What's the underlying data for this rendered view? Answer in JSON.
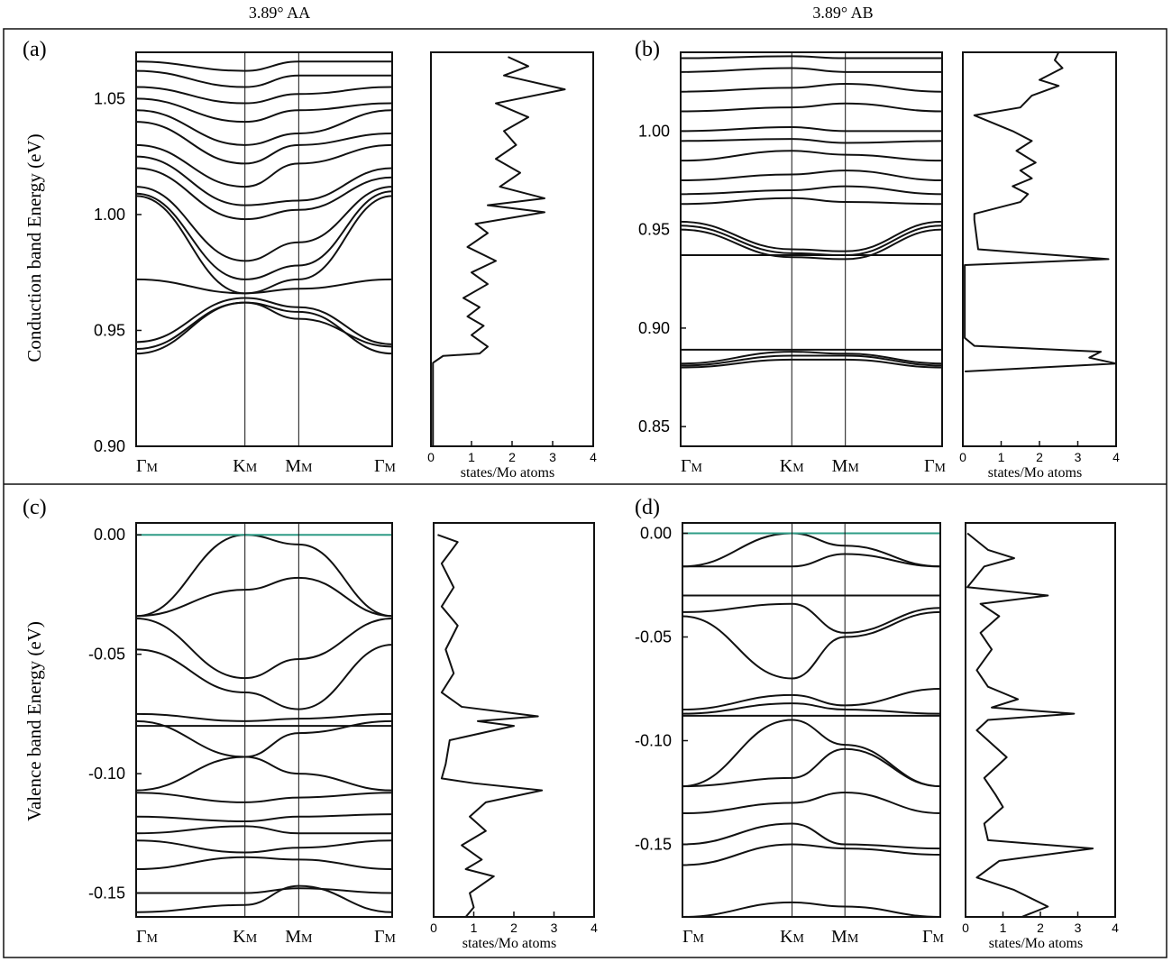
{
  "figure": {
    "column_titles": [
      "3.89° AA",
      "3.89° AB"
    ],
    "row_ylabels": [
      "Conduction band Energy (eV)",
      "Valence band Energy (eV)"
    ],
    "kpath_labels": [
      "ΓM",
      "KM",
      "MM",
      "ΓM"
    ],
    "dos_xlabel": "states/Mo atoms",
    "colors": {
      "band": "#111111",
      "fermi": "#2e9c86",
      "frame": "#111111"
    }
  },
  "chart_data": [
    {
      "type": "line",
      "panel": "(a)",
      "title": "3.89° AA",
      "subtype": "band-structure",
      "ylabel": "Conduction band Energy (eV)",
      "ylim": [
        0.9,
        1.07
      ],
      "yticks": [
        0.9,
        0.95,
        1.0,
        1.05
      ],
      "x": [
        "ΓM",
        "KM",
        "MM",
        "ΓM"
      ],
      "series": [
        {
          "values": [
            0.94,
            0.962,
            0.958,
            0.94
          ]
        },
        {
          "values": [
            0.942,
            0.962,
            0.955,
            0.943
          ]
        },
        {
          "values": [
            0.945,
            0.964,
            0.96,
            0.944
          ]
        },
        {
          "values": [
            0.972,
            0.966,
            0.968,
            0.972
          ]
        },
        {
          "values": [
            1.008,
            0.966,
            0.972,
            1.008
          ]
        },
        {
          "values": [
            1.009,
            0.972,
            0.978,
            1.01
          ]
        },
        {
          "values": [
            1.012,
            0.98,
            0.988,
            1.012
          ]
        },
        {
          "values": [
            1.02,
            0.998,
            1.002,
            1.016
          ]
        },
        {
          "values": [
            1.025,
            1.004,
            1.006,
            1.02
          ]
        },
        {
          "values": [
            1.03,
            1.012,
            1.022,
            1.03
          ]
        },
        {
          "values": [
            1.04,
            1.022,
            1.03,
            1.035
          ]
        },
        {
          "values": [
            1.045,
            1.03,
            1.035,
            1.045
          ]
        },
        {
          "values": [
            1.05,
            1.04,
            1.045,
            1.048
          ]
        },
        {
          "values": [
            1.055,
            1.048,
            1.052,
            1.055
          ]
        },
        {
          "values": [
            1.062,
            1.055,
            1.06,
            1.06
          ]
        },
        {
          "values": [
            1.066,
            1.062,
            1.066,
            1.066
          ]
        }
      ]
    },
    {
      "type": "line",
      "panel": "(a)",
      "subtype": "dos",
      "xlabel": "states/Mo atoms",
      "xlim": [
        0,
        4
      ],
      "xticks": [
        0,
        1,
        2,
        3,
        4
      ],
      "ylim": [
        0.9,
        1.07
      ],
      "points": [
        [
          0.05,
          0.9
        ],
        [
          0.05,
          0.936
        ],
        [
          0.3,
          0.939
        ],
        [
          1.2,
          0.94
        ],
        [
          1.4,
          0.943
        ],
        [
          1.0,
          0.948
        ],
        [
          1.3,
          0.952
        ],
        [
          0.9,
          0.956
        ],
        [
          1.2,
          0.96
        ],
        [
          0.8,
          0.964
        ],
        [
          1.4,
          0.97
        ],
        [
          1.0,
          0.975
        ],
        [
          1.6,
          0.98
        ],
        [
          0.9,
          0.986
        ],
        [
          1.4,
          0.992
        ],
        [
          1.1,
          0.996
        ],
        [
          2.8,
          1.001
        ],
        [
          1.4,
          1.004
        ],
        [
          2.8,
          1.007
        ],
        [
          1.7,
          1.012
        ],
        [
          2.2,
          1.018
        ],
        [
          1.6,
          1.024
        ],
        [
          2.1,
          1.03
        ],
        [
          1.8,
          1.036
        ],
        [
          2.4,
          1.042
        ],
        [
          1.6,
          1.048
        ],
        [
          3.3,
          1.054
        ],
        [
          1.8,
          1.06
        ],
        [
          2.4,
          1.064
        ],
        [
          1.9,
          1.068
        ]
      ]
    },
    {
      "type": "line",
      "panel": "(b)",
      "title": "3.89° AB",
      "subtype": "band-structure",
      "ylim": [
        0.84,
        1.04
      ],
      "yticks": [
        0.85,
        0.9,
        0.95,
        1.0
      ],
      "x": [
        "ΓM",
        "KM",
        "MM",
        "ΓM"
      ],
      "series": [
        {
          "values": [
            0.88,
            0.884,
            0.884,
            0.88
          ]
        },
        {
          "values": [
            0.881,
            0.886,
            0.886,
            0.881
          ]
        },
        {
          "values": [
            0.882,
            0.888,
            0.887,
            0.882
          ]
        },
        {
          "values": [
            0.889,
            0.889,
            0.889,
            0.889
          ]
        },
        {
          "values": [
            0.937,
            0.937,
            0.937,
            0.937
          ]
        },
        {
          "values": [
            0.95,
            0.936,
            0.935,
            0.95
          ]
        },
        {
          "values": [
            0.952,
            0.938,
            0.937,
            0.952
          ]
        },
        {
          "values": [
            0.954,
            0.94,
            0.939,
            0.954
          ]
        },
        {
          "values": [
            0.963,
            0.966,
            0.964,
            0.963
          ]
        },
        {
          "values": [
            0.968,
            0.97,
            0.972,
            0.968
          ]
        },
        {
          "values": [
            0.975,
            0.978,
            0.98,
            0.975
          ]
        },
        {
          "values": [
            0.985,
            0.99,
            0.988,
            0.985
          ]
        },
        {
          "values": [
            0.995,
            0.996,
            0.994,
            0.995
          ]
        },
        {
          "values": [
            1.0,
            1.002,
            1.0,
            1.0
          ]
        },
        {
          "values": [
            1.01,
            1.012,
            1.014,
            1.01
          ]
        },
        {
          "values": [
            1.02,
            1.022,
            1.024,
            1.02
          ]
        },
        {
          "values": [
            1.03,
            1.032,
            1.03,
            1.03
          ]
        },
        {
          "values": [
            1.037,
            1.038,
            1.037,
            1.037
          ]
        }
      ]
    },
    {
      "type": "line",
      "panel": "(b)",
      "subtype": "dos",
      "xlabel": "states/Mo atoms",
      "xlim": [
        0,
        4
      ],
      "xticks": [
        0,
        1,
        2,
        3,
        4
      ],
      "ylim": [
        0.84,
        1.04
      ],
      "points": [
        [
          0.05,
          0.878
        ],
        [
          4.0,
          0.882
        ],
        [
          3.3,
          0.885
        ],
        [
          3.6,
          0.888
        ],
        [
          0.3,
          0.891
        ],
        [
          0.05,
          0.895
        ],
        [
          0.05,
          0.932
        ],
        [
          3.8,
          0.935
        ],
        [
          0.4,
          0.94
        ],
        [
          0.3,
          0.955
        ],
        [
          0.3,
          0.958
        ],
        [
          1.5,
          0.964
        ],
        [
          1.7,
          0.968
        ],
        [
          1.3,
          0.972
        ],
        [
          1.8,
          0.976
        ],
        [
          1.5,
          0.98
        ],
        [
          1.9,
          0.984
        ],
        [
          1.4,
          0.99
        ],
        [
          1.8,
          0.995
        ],
        [
          1.3,
          1.0
        ],
        [
          0.3,
          1.008
        ],
        [
          1.5,
          1.012
        ],
        [
          1.8,
          1.018
        ],
        [
          2.5,
          1.023
        ],
        [
          2.0,
          1.026
        ],
        [
          2.6,
          1.032
        ],
        [
          2.4,
          1.036
        ],
        [
          2.5,
          1.04
        ]
      ]
    },
    {
      "type": "line",
      "panel": "(c)",
      "subtype": "band-structure",
      "ylabel": "Valence band Energy (eV)",
      "ylim": [
        -0.16,
        0.005
      ],
      "yticks": [
        0.0,
        -0.05,
        -0.1,
        -0.15
      ],
      "x": [
        "ΓM",
        "KM",
        "MM",
        "ΓM"
      ],
      "fermi_level": 0.0,
      "series": [
        {
          "values": [
            -0.034,
            0.0,
            -0.004,
            -0.034
          ]
        },
        {
          "values": [
            -0.034,
            -0.023,
            -0.018,
            -0.034
          ]
        },
        {
          "values": [
            -0.035,
            -0.06,
            -0.052,
            -0.035
          ]
        },
        {
          "values": [
            -0.048,
            -0.066,
            -0.073,
            -0.046
          ]
        },
        {
          "values": [
            -0.075,
            -0.078,
            -0.077,
            -0.075
          ]
        },
        {
          "values": [
            -0.08,
            -0.08,
            -0.08,
            -0.08
          ]
        },
        {
          "values": [
            -0.078,
            -0.093,
            -0.083,
            -0.078
          ]
        },
        {
          "values": [
            -0.107,
            -0.093,
            -0.1,
            -0.107
          ]
        },
        {
          "values": [
            -0.108,
            -0.112,
            -0.11,
            -0.108
          ]
        },
        {
          "values": [
            -0.118,
            -0.12,
            -0.118,
            -0.117
          ]
        },
        {
          "values": [
            -0.125,
            -0.122,
            -0.125,
            -0.125
          ]
        },
        {
          "values": [
            -0.128,
            -0.133,
            -0.131,
            -0.128
          ]
        },
        {
          "values": [
            -0.14,
            -0.135,
            -0.136,
            -0.14
          ]
        },
        {
          "values": [
            -0.15,
            -0.15,
            -0.148,
            -0.15
          ]
        },
        {
          "values": [
            -0.158,
            -0.155,
            -0.147,
            -0.158
          ]
        }
      ]
    },
    {
      "type": "line",
      "panel": "(c)",
      "subtype": "dos",
      "xlabel": "states/Mo atoms",
      "xlim": [
        0,
        4
      ],
      "xticks": [
        0,
        1,
        2,
        3,
        4
      ],
      "ylim": [
        -0.16,
        0.005
      ],
      "points": [
        [
          0.1,
          0.0
        ],
        [
          0.6,
          -0.003
        ],
        [
          0.2,
          -0.012
        ],
        [
          0.5,
          -0.022
        ],
        [
          0.2,
          -0.03
        ],
        [
          0.6,
          -0.038
        ],
        [
          0.3,
          -0.048
        ],
        [
          0.5,
          -0.058
        ],
        [
          0.2,
          -0.066
        ],
        [
          0.7,
          -0.072
        ],
        [
          2.6,
          -0.076
        ],
        [
          1.1,
          -0.078
        ],
        [
          2.0,
          -0.08
        ],
        [
          0.4,
          -0.086
        ],
        [
          0.3,
          -0.096
        ],
        [
          0.2,
          -0.102
        ],
        [
          1.0,
          -0.104
        ],
        [
          2.7,
          -0.107
        ],
        [
          1.3,
          -0.112
        ],
        [
          0.9,
          -0.118
        ],
        [
          1.3,
          -0.124
        ],
        [
          0.7,
          -0.13
        ],
        [
          1.2,
          -0.136
        ],
        [
          0.8,
          -0.14
        ],
        [
          1.5,
          -0.143
        ],
        [
          0.9,
          -0.15
        ],
        [
          1.0,
          -0.156
        ],
        [
          0.8,
          -0.16
        ]
      ]
    },
    {
      "type": "line",
      "panel": "(d)",
      "subtype": "band-structure",
      "ylim": [
        -0.185,
        0.005
      ],
      "yticks": [
        0.0,
        -0.05,
        -0.1,
        -0.15
      ],
      "x": [
        "ΓM",
        "KM",
        "MM",
        "ΓM"
      ],
      "fermi_level": 0.0,
      "series": [
        {
          "values": [
            -0.016,
            0.0,
            -0.006,
            -0.016
          ]
        },
        {
          "values": [
            -0.016,
            -0.016,
            -0.01,
            -0.016
          ]
        },
        {
          "values": [
            -0.03,
            -0.03,
            -0.03,
            -0.03
          ]
        },
        {
          "values": [
            -0.038,
            -0.034,
            -0.048,
            -0.036
          ]
        },
        {
          "values": [
            -0.04,
            -0.07,
            -0.05,
            -0.038
          ]
        },
        {
          "values": [
            -0.085,
            -0.078,
            -0.083,
            -0.075
          ]
        },
        {
          "values": [
            -0.087,
            -0.082,
            -0.085,
            -0.087
          ]
        },
        {
          "values": [
            -0.088,
            -0.088,
            -0.088,
            -0.088
          ]
        },
        {
          "values": [
            -0.122,
            -0.09,
            -0.102,
            -0.122
          ]
        },
        {
          "values": [
            -0.122,
            -0.118,
            -0.104,
            -0.122
          ]
        },
        {
          "values": [
            -0.135,
            -0.13,
            -0.125,
            -0.135
          ]
        },
        {
          "values": [
            -0.15,
            -0.14,
            -0.15,
            -0.152
          ]
        },
        {
          "values": [
            -0.16,
            -0.15,
            -0.152,
            -0.155
          ]
        },
        {
          "values": [
            -0.185,
            -0.178,
            -0.18,
            -0.185
          ]
        }
      ]
    },
    {
      "type": "line",
      "panel": "(d)",
      "subtype": "dos",
      "xlabel": "states/Mo atoms",
      "xlim": [
        0,
        4
      ],
      "xticks": [
        0,
        1,
        2,
        3,
        4
      ],
      "ylim": [
        -0.185,
        0.005
      ],
      "points": [
        [
          0.05,
          0.0
        ],
        [
          0.6,
          -0.008
        ],
        [
          1.3,
          -0.012
        ],
        [
          0.5,
          -0.016
        ],
        [
          0.05,
          -0.026
        ],
        [
          2.2,
          -0.03
        ],
        [
          0.4,
          -0.034
        ],
        [
          0.9,
          -0.04
        ],
        [
          0.4,
          -0.048
        ],
        [
          0.7,
          -0.056
        ],
        [
          0.3,
          -0.066
        ],
        [
          0.6,
          -0.074
        ],
        [
          1.4,
          -0.08
        ],
        [
          0.7,
          -0.084
        ],
        [
          2.9,
          -0.087
        ],
        [
          0.6,
          -0.09
        ],
        [
          0.3,
          -0.095
        ],
        [
          1.1,
          -0.108
        ],
        [
          0.5,
          -0.118
        ],
        [
          0.8,
          -0.126
        ],
        [
          1.0,
          -0.132
        ],
        [
          0.5,
          -0.14
        ],
        [
          0.6,
          -0.148
        ],
        [
          3.4,
          -0.152
        ],
        [
          0.9,
          -0.158
        ],
        [
          0.3,
          -0.166
        ],
        [
          1.3,
          -0.172
        ],
        [
          2.2,
          -0.18
        ],
        [
          1.5,
          -0.185
        ]
      ]
    }
  ]
}
